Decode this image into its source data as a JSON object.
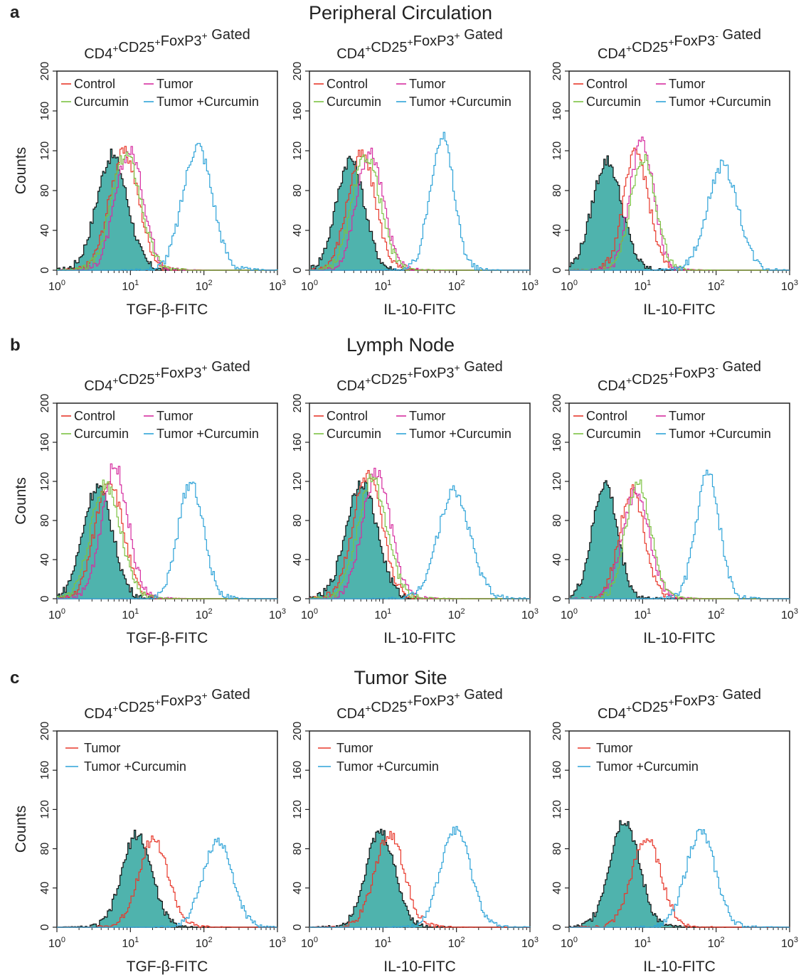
{
  "figure": {
    "sections": [
      {
        "letter": "a",
        "title": "Peripheral Circulation"
      },
      {
        "letter": "b",
        "title": "Lymph Node"
      },
      {
        "letter": "c",
        "title": "Tumor Site"
      }
    ]
  },
  "colors": {
    "control": "#e8382b",
    "tumor": "#d62ea0",
    "curcumin": "#7cc242",
    "tumor_curcumin": "#2ea3d8",
    "filled": "#4fb3ad",
    "filled_edge": "#111111",
    "axis": "#222222"
  },
  "chart_data": [
    {
      "type": "area",
      "section": "a",
      "title": "CD4+CD25+FoxP3+ Gated",
      "title_parts": {
        "base": [
          "CD4",
          "CD25",
          "FoxP3"
        ],
        "sup": [
          "+",
          "+",
          "+"
        ],
        "suffix": "Gated"
      },
      "xlabel": "TGF-β-FITC",
      "ylabel": "Counts",
      "x_scale": "log",
      "xlim": [
        1,
        1000
      ],
      "ylim": [
        0,
        200
      ],
      "x_ticks": [
        "10^0",
        "10^1",
        "10^2",
        "10^3"
      ],
      "y_ticks": [
        "0",
        "40",
        "80",
        "120",
        "160",
        "200"
      ],
      "legend": [
        "Control",
        "Tumor",
        "Curcumin",
        "Tumor +Curcumin"
      ],
      "legend_position": "top",
      "filled": {
        "peak_x": 5.5,
        "peak_y": 115,
        "width": 0.21
      },
      "series": [
        {
          "name": "Control",
          "key": "control",
          "peak_x": 8.0,
          "peak_y": 118,
          "width": 0.2
        },
        {
          "name": "Tumor",
          "key": "tumor",
          "peak_x": 9.5,
          "peak_y": 120,
          "width": 0.19
        },
        {
          "name": "Curcumin",
          "key": "curcumin",
          "peak_x": 8.5,
          "peak_y": 116,
          "width": 0.2
        },
        {
          "name": "Tumor +Curcumin",
          "key": "tumor_curcumin",
          "peak_x": 80,
          "peak_y": 125,
          "width": 0.2
        }
      ]
    },
    {
      "type": "area",
      "section": "a",
      "title": "CD4+CD25+FoxP3+ Gated",
      "title_parts": {
        "base": [
          "CD4",
          "CD25",
          "FoxP3"
        ],
        "sup": [
          "+",
          "+",
          "+"
        ],
        "suffix": "Gated"
      },
      "xlabel": "IL-10-FITC",
      "ylabel": "",
      "x_scale": "log",
      "xlim": [
        1,
        1000
      ],
      "ylim": [
        0,
        200
      ],
      "x_ticks": [
        "10^0",
        "10^1",
        "10^2",
        "10^3"
      ],
      "y_ticks": [
        "0",
        "40",
        "80",
        "120",
        "160",
        "200"
      ],
      "legend": [
        "Control",
        "Tumor",
        "Curcumin",
        "Tumor +Curcumin"
      ],
      "legend_position": "top",
      "filled": {
        "peak_x": 3.5,
        "peak_y": 112,
        "width": 0.19
      },
      "series": [
        {
          "name": "Control",
          "key": "control",
          "peak_x": 5.0,
          "peak_y": 116,
          "width": 0.19
        },
        {
          "name": "Tumor",
          "key": "tumor",
          "peak_x": 6.5,
          "peak_y": 118,
          "width": 0.18
        },
        {
          "name": "Curcumin",
          "key": "curcumin",
          "peak_x": 5.8,
          "peak_y": 115,
          "width": 0.19
        },
        {
          "name": "Tumor +Curcumin",
          "key": "tumor_curcumin",
          "peak_x": 62,
          "peak_y": 135,
          "width": 0.16
        }
      ]
    },
    {
      "type": "area",
      "section": "a",
      "title": "CD4+CD25+FoxP3-Gated",
      "title_parts": {
        "base": [
          "CD4",
          "CD25",
          "FoxP3"
        ],
        "sup": [
          "+",
          "+",
          "-"
        ],
        "suffix": "Gated"
      },
      "xlabel": "IL-10-FITC",
      "ylabel": "",
      "x_scale": "log",
      "xlim": [
        1,
        1000
      ],
      "ylim": [
        0,
        200
      ],
      "x_ticks": [
        "10^0",
        "10^1",
        "10^2",
        "10^3"
      ],
      "y_ticks": [
        "0",
        "40",
        "80",
        "120",
        "160",
        "200"
      ],
      "legend": [
        "Control",
        "Tumor",
        "Curcumin",
        "Tumor +Curcumin"
      ],
      "legend_position": "top",
      "filled": {
        "peak_x": 3.2,
        "peak_y": 110,
        "width": 0.2
      },
      "series": [
        {
          "name": "Control",
          "key": "control",
          "peak_x": 8.0,
          "peak_y": 118,
          "width": 0.17
        },
        {
          "name": "Tumor",
          "key": "tumor",
          "peak_x": 9.5,
          "peak_y": 130,
          "width": 0.16
        },
        {
          "name": "Curcumin",
          "key": "curcumin",
          "peak_x": 10.0,
          "peak_y": 112,
          "width": 0.17
        },
        {
          "name": "Tumor +Curcumin",
          "key": "tumor_curcumin",
          "peak_x": 120,
          "peak_y": 105,
          "width": 0.21
        }
      ]
    },
    {
      "type": "area",
      "section": "b",
      "title": "CD4+CD25+FoxP3+ Gated",
      "title_parts": {
        "base": [
          "CD4",
          "CD25",
          "FoxP3"
        ],
        "sup": [
          "+",
          "+",
          "+"
        ],
        "suffix": "Gated"
      },
      "xlabel": "TGF-β-FITC",
      "ylabel": "Counts",
      "x_scale": "log",
      "xlim": [
        1,
        1000
      ],
      "ylim": [
        0,
        200
      ],
      "x_ticks": [
        "10^0",
        "10^1",
        "10^2",
        "10^3"
      ],
      "y_ticks": [
        "0",
        "40",
        "80",
        "120",
        "160",
        "200"
      ],
      "legend": [
        "Control",
        "Tumor",
        "Curcumin",
        "Tumor +Curcumin"
      ],
      "legend_position": "top",
      "filled": {
        "peak_x": 3.5,
        "peak_y": 115,
        "width": 0.2
      },
      "series": [
        {
          "name": "Control",
          "key": "control",
          "peak_x": 5.0,
          "peak_y": 122,
          "width": 0.19
        },
        {
          "name": "Tumor",
          "key": "tumor",
          "peak_x": 6.0,
          "peak_y": 135,
          "width": 0.18
        },
        {
          "name": "Curcumin",
          "key": "curcumin",
          "peak_x": 4.5,
          "peak_y": 118,
          "width": 0.2
        },
        {
          "name": "Tumor +Curcumin",
          "key": "tumor_curcumin",
          "peak_x": 65,
          "peak_y": 120,
          "width": 0.17
        }
      ]
    },
    {
      "type": "area",
      "section": "b",
      "title": "CD4+CD25+FoxP3+ Gated",
      "title_parts": {
        "base": [
          "CD4",
          "CD25",
          "FoxP3"
        ],
        "sup": [
          "+",
          "+",
          "+"
        ],
        "suffix": "Gated"
      },
      "xlabel": "IL-10-FITC",
      "ylabel": "",
      "x_scale": "log",
      "xlim": [
        1,
        1000
      ],
      "ylim": [
        0,
        200
      ],
      "x_ticks": [
        "10^0",
        "10^1",
        "10^2",
        "10^3"
      ],
      "y_ticks": [
        "0",
        "40",
        "80",
        "120",
        "160",
        "200"
      ],
      "legend": [
        "Control",
        "Tumor",
        "Curcumin",
        "Tumor +Curcumin"
      ],
      "legend_position": "top",
      "filled": {
        "peak_x": 5.0,
        "peak_y": 120,
        "width": 0.21
      },
      "series": [
        {
          "name": "Control",
          "key": "control",
          "peak_x": 6.0,
          "peak_y": 125,
          "width": 0.2
        },
        {
          "name": "Tumor",
          "key": "tumor",
          "peak_x": 8.0,
          "peak_y": 128,
          "width": 0.19
        },
        {
          "name": "Curcumin",
          "key": "curcumin",
          "peak_x": 7.0,
          "peak_y": 122,
          "width": 0.2
        },
        {
          "name": "Tumor +Curcumin",
          "key": "tumor_curcumin",
          "peak_x": 90,
          "peak_y": 110,
          "width": 0.22
        }
      ]
    },
    {
      "type": "area",
      "section": "b",
      "title": "CD4+CD25+FoxP3-Gated",
      "title_parts": {
        "base": [
          "CD4",
          "CD25",
          "FoxP3"
        ],
        "sup": [
          "+",
          "+",
          "-"
        ],
        "suffix": "Gated"
      },
      "xlabel": "IL-10-FITC",
      "ylabel": "",
      "x_scale": "log",
      "xlim": [
        1,
        1000
      ],
      "ylim": [
        0,
        200
      ],
      "x_ticks": [
        "10^0",
        "10^1",
        "10^2",
        "10^3"
      ],
      "y_ticks": [
        "0",
        "40",
        "80",
        "120",
        "160",
        "200"
      ],
      "legend": [
        "Control",
        "Tumor",
        "Curcumin",
        "Tumor +Curcumin"
      ],
      "legend_position": "top",
      "filled": {
        "peak_x": 3.0,
        "peak_y": 118,
        "width": 0.17
      },
      "series": [
        {
          "name": "Control",
          "key": "control",
          "peak_x": 7.0,
          "peak_y": 112,
          "width": 0.17
        },
        {
          "name": "Tumor",
          "key": "tumor",
          "peak_x": 8.0,
          "peak_y": 110,
          "width": 0.18
        },
        {
          "name": "Curcumin",
          "key": "curcumin",
          "peak_x": 8.5,
          "peak_y": 120,
          "width": 0.17
        },
        {
          "name": "Tumor +Curcumin",
          "key": "tumor_curcumin",
          "peak_x": 75,
          "peak_y": 128,
          "width": 0.16
        }
      ]
    },
    {
      "type": "area",
      "section": "c",
      "title": "CD4+CD25+FoxP3+ Gated",
      "title_parts": {
        "base": [
          "CD4",
          "CD25",
          "FoxP3"
        ],
        "sup": [
          "+",
          "+",
          "+"
        ],
        "suffix": "Gated"
      },
      "xlabel": "TGF-β-FITC",
      "ylabel": "Counts",
      "x_scale": "log",
      "xlim": [
        1,
        1000
      ],
      "ylim": [
        0,
        200
      ],
      "x_ticks": [
        "10^0",
        "10^1",
        "10^2",
        "10^3"
      ],
      "y_ticks": [
        "0",
        "40",
        "80",
        "120",
        "160",
        "200"
      ],
      "legend": [
        "Tumor",
        "Tumor +Curcumin"
      ],
      "legend_position": "top-left",
      "filled": {
        "peak_x": 12,
        "peak_y": 95,
        "width": 0.2
      },
      "series": [
        {
          "name": "Tumor",
          "key": "control",
          "peak_x": 20,
          "peak_y": 90,
          "width": 0.2
        },
        {
          "name": "Tumor +Curcumin",
          "key": "tumor_curcumin",
          "peak_x": 150,
          "peak_y": 88,
          "width": 0.2
        }
      ]
    },
    {
      "type": "area",
      "section": "c",
      "title": "CD4+CD25+FoxP3+ Gated",
      "title_parts": {
        "base": [
          "CD4",
          "CD25",
          "FoxP3"
        ],
        "sup": [
          "+",
          "+",
          "+"
        ],
        "suffix": "Gated"
      },
      "xlabel": "IL-10-FITC",
      "ylabel": "",
      "x_scale": "log",
      "xlim": [
        1,
        1000
      ],
      "ylim": [
        0,
        200
      ],
      "x_ticks": [
        "10^0",
        "10^1",
        "10^2",
        "10^3"
      ],
      "y_ticks": [
        "0",
        "40",
        "80",
        "120",
        "160",
        "200"
      ],
      "legend": [
        "Tumor",
        "Tumor +Curcumin"
      ],
      "legend_position": "top-left",
      "filled": {
        "peak_x": 9,
        "peak_y": 97,
        "width": 0.2
      },
      "series": [
        {
          "name": "Tumor",
          "key": "control",
          "peak_x": 12,
          "peak_y": 95,
          "width": 0.2
        },
        {
          "name": "Tumor +Curcumin",
          "key": "tumor_curcumin",
          "peak_x": 95,
          "peak_y": 100,
          "width": 0.2
        }
      ]
    },
    {
      "type": "area",
      "section": "c",
      "title": "CD4+CD25+FoxP3- Gated",
      "title_parts": {
        "base": [
          "CD4",
          "CD25",
          "FoxP3"
        ],
        "sup": [
          "+",
          "+",
          "-"
        ],
        "suffix": "Gated"
      },
      "xlabel": "IL-10-FITC",
      "ylabel": "",
      "x_scale": "log",
      "xlim": [
        1,
        1000
      ],
      "ylim": [
        0,
        200
      ],
      "x_ticks": [
        "10^0",
        "10^1",
        "10^2",
        "10^3"
      ],
      "y_ticks": [
        "0",
        "40",
        "80",
        "120",
        "160",
        "200"
      ],
      "legend": [
        "Tumor",
        "Tumor +Curcumin"
      ],
      "legend_position": "top-left",
      "filled": {
        "peak_x": 5.5,
        "peak_y": 110,
        "width": 0.2
      },
      "series": [
        {
          "name": "Tumor",
          "key": "control",
          "peak_x": 11,
          "peak_y": 90,
          "width": 0.2
        },
        {
          "name": "Tumor +Curcumin",
          "key": "tumor_curcumin",
          "peak_x": 60,
          "peak_y": 97,
          "width": 0.2
        }
      ]
    }
  ]
}
